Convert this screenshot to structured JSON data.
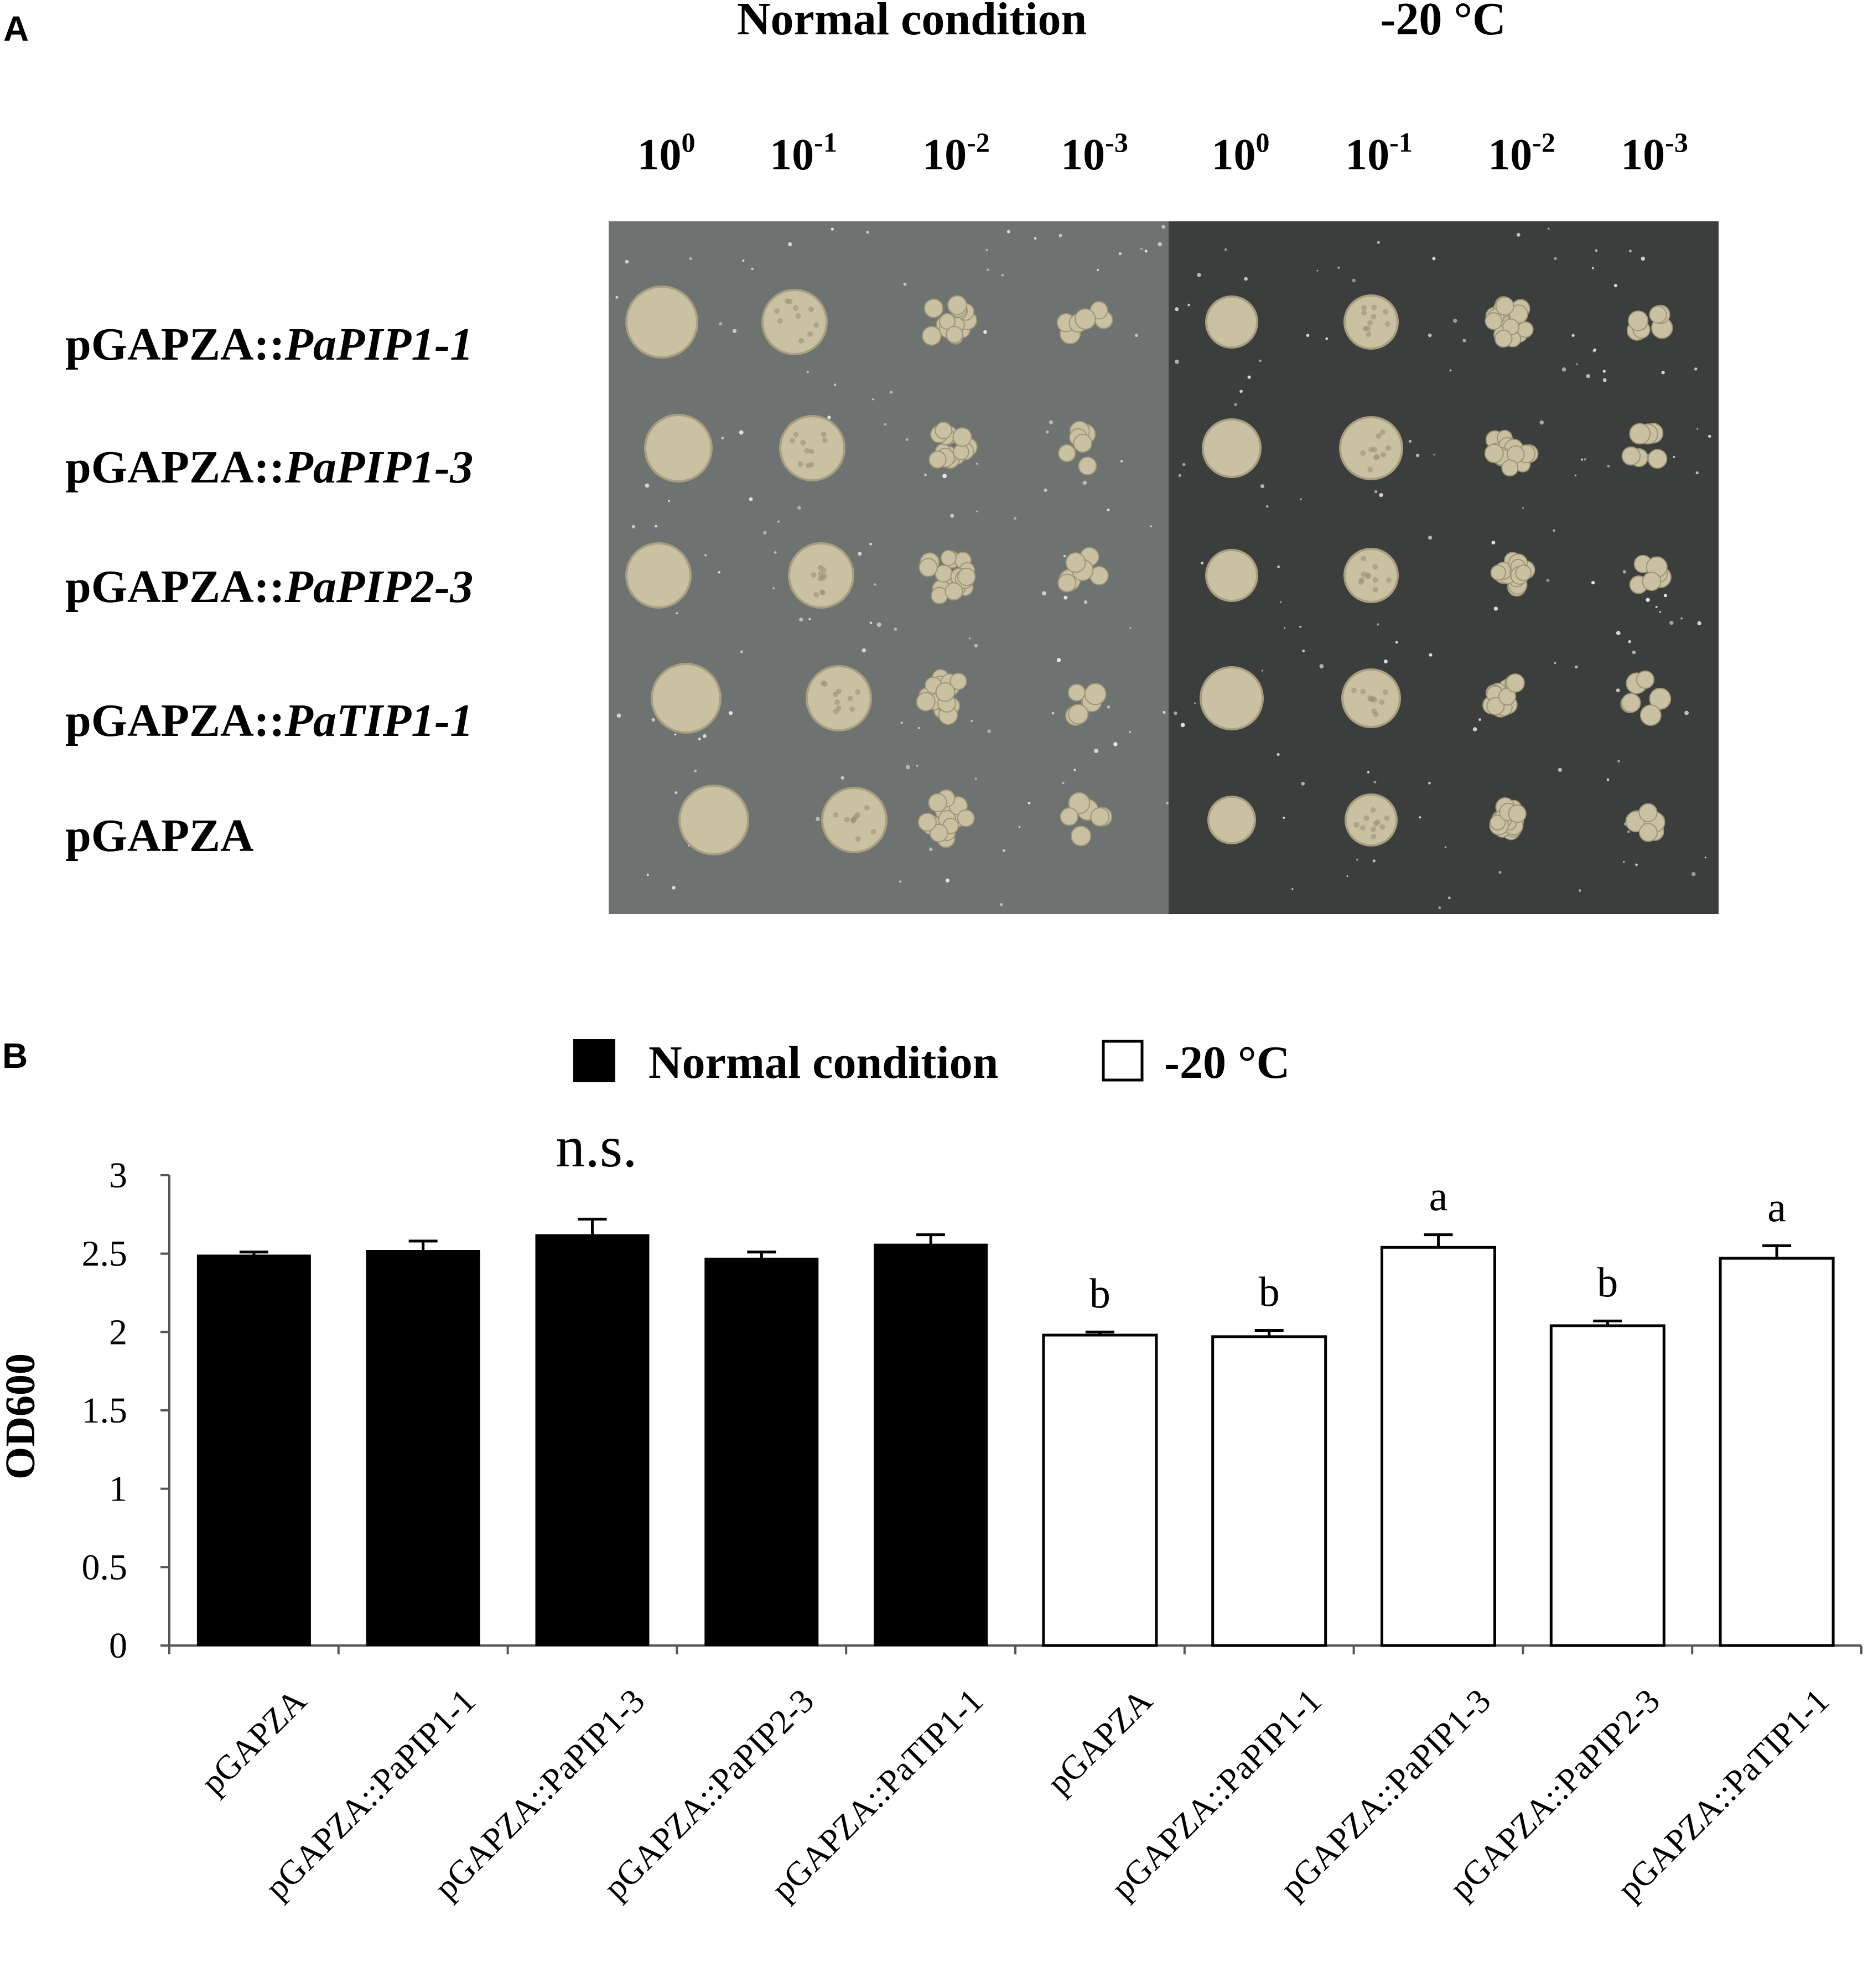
{
  "panel_a": {
    "letter": "A",
    "conditions": [
      "Normal condition",
      "-20 °C"
    ],
    "dilutions": [
      {
        "base": "10",
        "exp": "0"
      },
      {
        "base": "10",
        "exp": "-1"
      },
      {
        "base": "10",
        "exp": "-2"
      },
      {
        "base": "10",
        "exp": "-3"
      },
      {
        "base": "10",
        "exp": "0"
      },
      {
        "base": "10",
        "exp": "-1"
      },
      {
        "base": "10",
        "exp": "-2"
      },
      {
        "base": "10",
        "exp": "-3"
      }
    ],
    "strains": [
      {
        "prefix": "pGAPZA::",
        "gene": "PaPIP1-1"
      },
      {
        "prefix": "pGAPZA::",
        "gene": "PaPIP1-3"
      },
      {
        "prefix": "pGAPZA::",
        "gene": "PaPIP2-3"
      },
      {
        "prefix": "pGAPZA::",
        "gene": "PaTIP1-1"
      },
      {
        "prefix": "pGAPZA",
        "gene": ""
      }
    ],
    "colors": {
      "plate_normal": "#6e7371",
      "plate_cold": "#3c3e3d",
      "colony": "#c9c1a1"
    }
  },
  "panel_b": {
    "letter": "B",
    "significance_note": "n.s."
  },
  "chart_data": {
    "type": "bar",
    "ylabel": "OD600",
    "ylim": [
      0,
      3
    ],
    "yticks": [
      "0",
      "0.5",
      "1",
      "1.5",
      "2",
      "2.5",
      "3"
    ],
    "categories": [
      "pGAPZA",
      "pGAPZA::PaPIP1-1",
      "pGAPZA::PaPIP1-3",
      "pGAPZA::PaPIP2-3",
      "pGAPZA::PaTIP1-1",
      "pGAPZA",
      "pGAPZA::PaPIP1-1",
      "pGAPZA::PaPIP1-3",
      "pGAPZA::PaPIP2-3",
      "pGAPZA::PaTIP1-1"
    ],
    "series": [
      {
        "name": "Normal condition",
        "color": "#000000",
        "values": [
          2.49,
          2.52,
          2.62,
          2.47,
          2.56,
          null,
          null,
          null,
          null,
          null
        ],
        "errors": [
          0.02,
          0.06,
          0.1,
          0.04,
          0.06,
          null,
          null,
          null,
          null,
          null
        ]
      },
      {
        "name": "-20 °C",
        "color": "#ffffff",
        "values": [
          null,
          null,
          null,
          null,
          null,
          1.98,
          1.97,
          2.54,
          2.04,
          2.47
        ],
        "errors": [
          null,
          null,
          null,
          null,
          null,
          0.02,
          0.04,
          0.08,
          0.03,
          0.08
        ],
        "letters": [
          "",
          "",
          "",
          "",
          "",
          "b",
          "b",
          "a",
          "b",
          "a"
        ]
      }
    ],
    "legend": "top-center",
    "grid": false
  }
}
